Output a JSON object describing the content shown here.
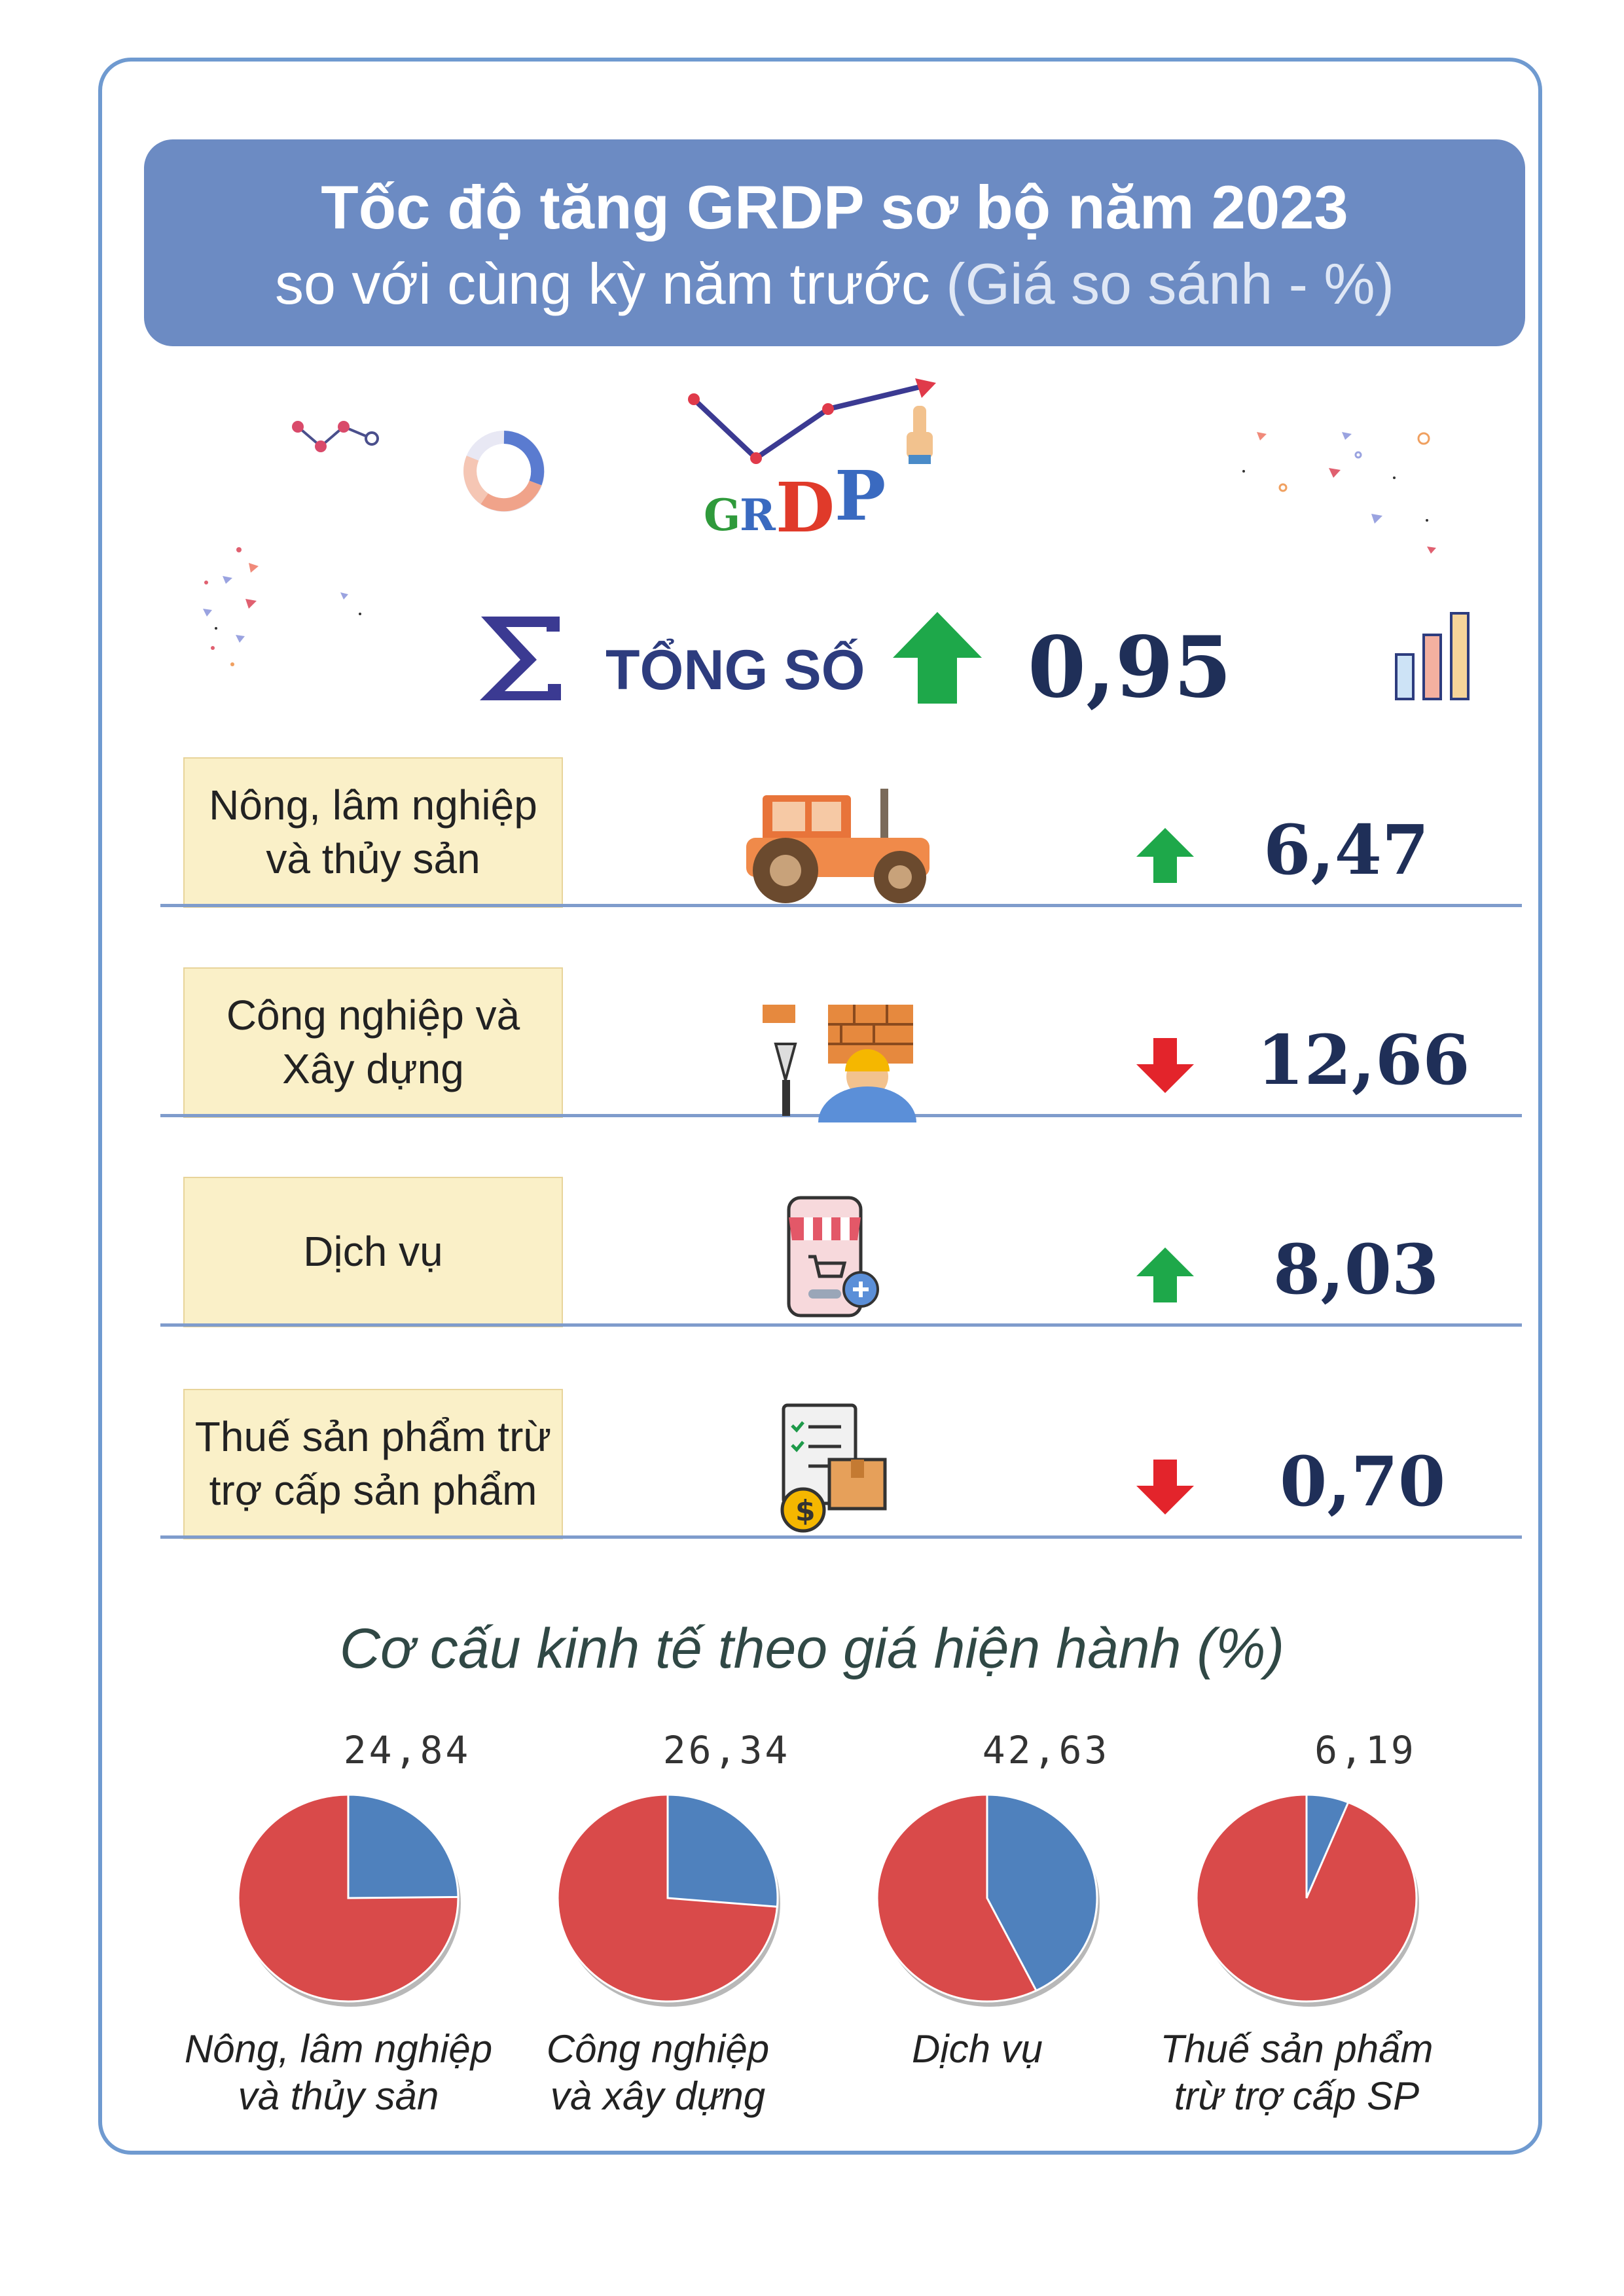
{
  "header": {
    "title": "Tốc độ tăng GRDP sơ bộ năm 2023",
    "subtitle": "so với cùng kỳ năm trước",
    "subtitle_paren": "(Giá so sánh - %)"
  },
  "logo": {
    "letters": [
      "G",
      "R",
      "D",
      "P"
    ]
  },
  "total": {
    "label": "TỔNG SỐ",
    "value": "0,95",
    "direction": "up",
    "icon": "sigma-icon"
  },
  "sectors": [
    {
      "label": "Nông, lâm nghiệp\nvà thủy sản",
      "value": "6,47",
      "direction": "up",
      "icon": "tractor-icon"
    },
    {
      "label": "Công nghiệp và\nXây dựng",
      "value": "12,66",
      "direction": "down",
      "icon": "construction-worker-icon"
    },
    {
      "label": "Dịch vụ",
      "value": "8,03",
      "direction": "up",
      "icon": "online-shop-icon"
    },
    {
      "label": "Thuế sản phẩm trừ\ntrợ cấp sản phẩm",
      "value": "0,70",
      "direction": "down",
      "icon": "tax-document-icon"
    }
  ],
  "colors": {
    "up": "#1ea84a",
    "down": "#e3242b",
    "pie_main": "#d94a4a",
    "pie_share": "#4f81bd",
    "banner": "#6c8bc3"
  },
  "structure": {
    "title": "Cơ cấu kinh tế theo giá hiện hành (%)"
  },
  "chart_data": {
    "type": "pie",
    "pies": [
      {
        "label": "Nông, lâm nghiệp\nvà thủy sản",
        "value_label": "24,84",
        "share": 24.84
      },
      {
        "label": "Công nghiệp\nvà xây dựng",
        "value_label": "26,34",
        "share": 26.34
      },
      {
        "label": "Dịch vụ",
        "value_label": "42,63",
        "share": 42.63
      },
      {
        "label": "Thuế sản phẩm\ntrừ trợ cấp SP",
        "value_label": "6,19",
        "share": 6.19
      }
    ]
  }
}
